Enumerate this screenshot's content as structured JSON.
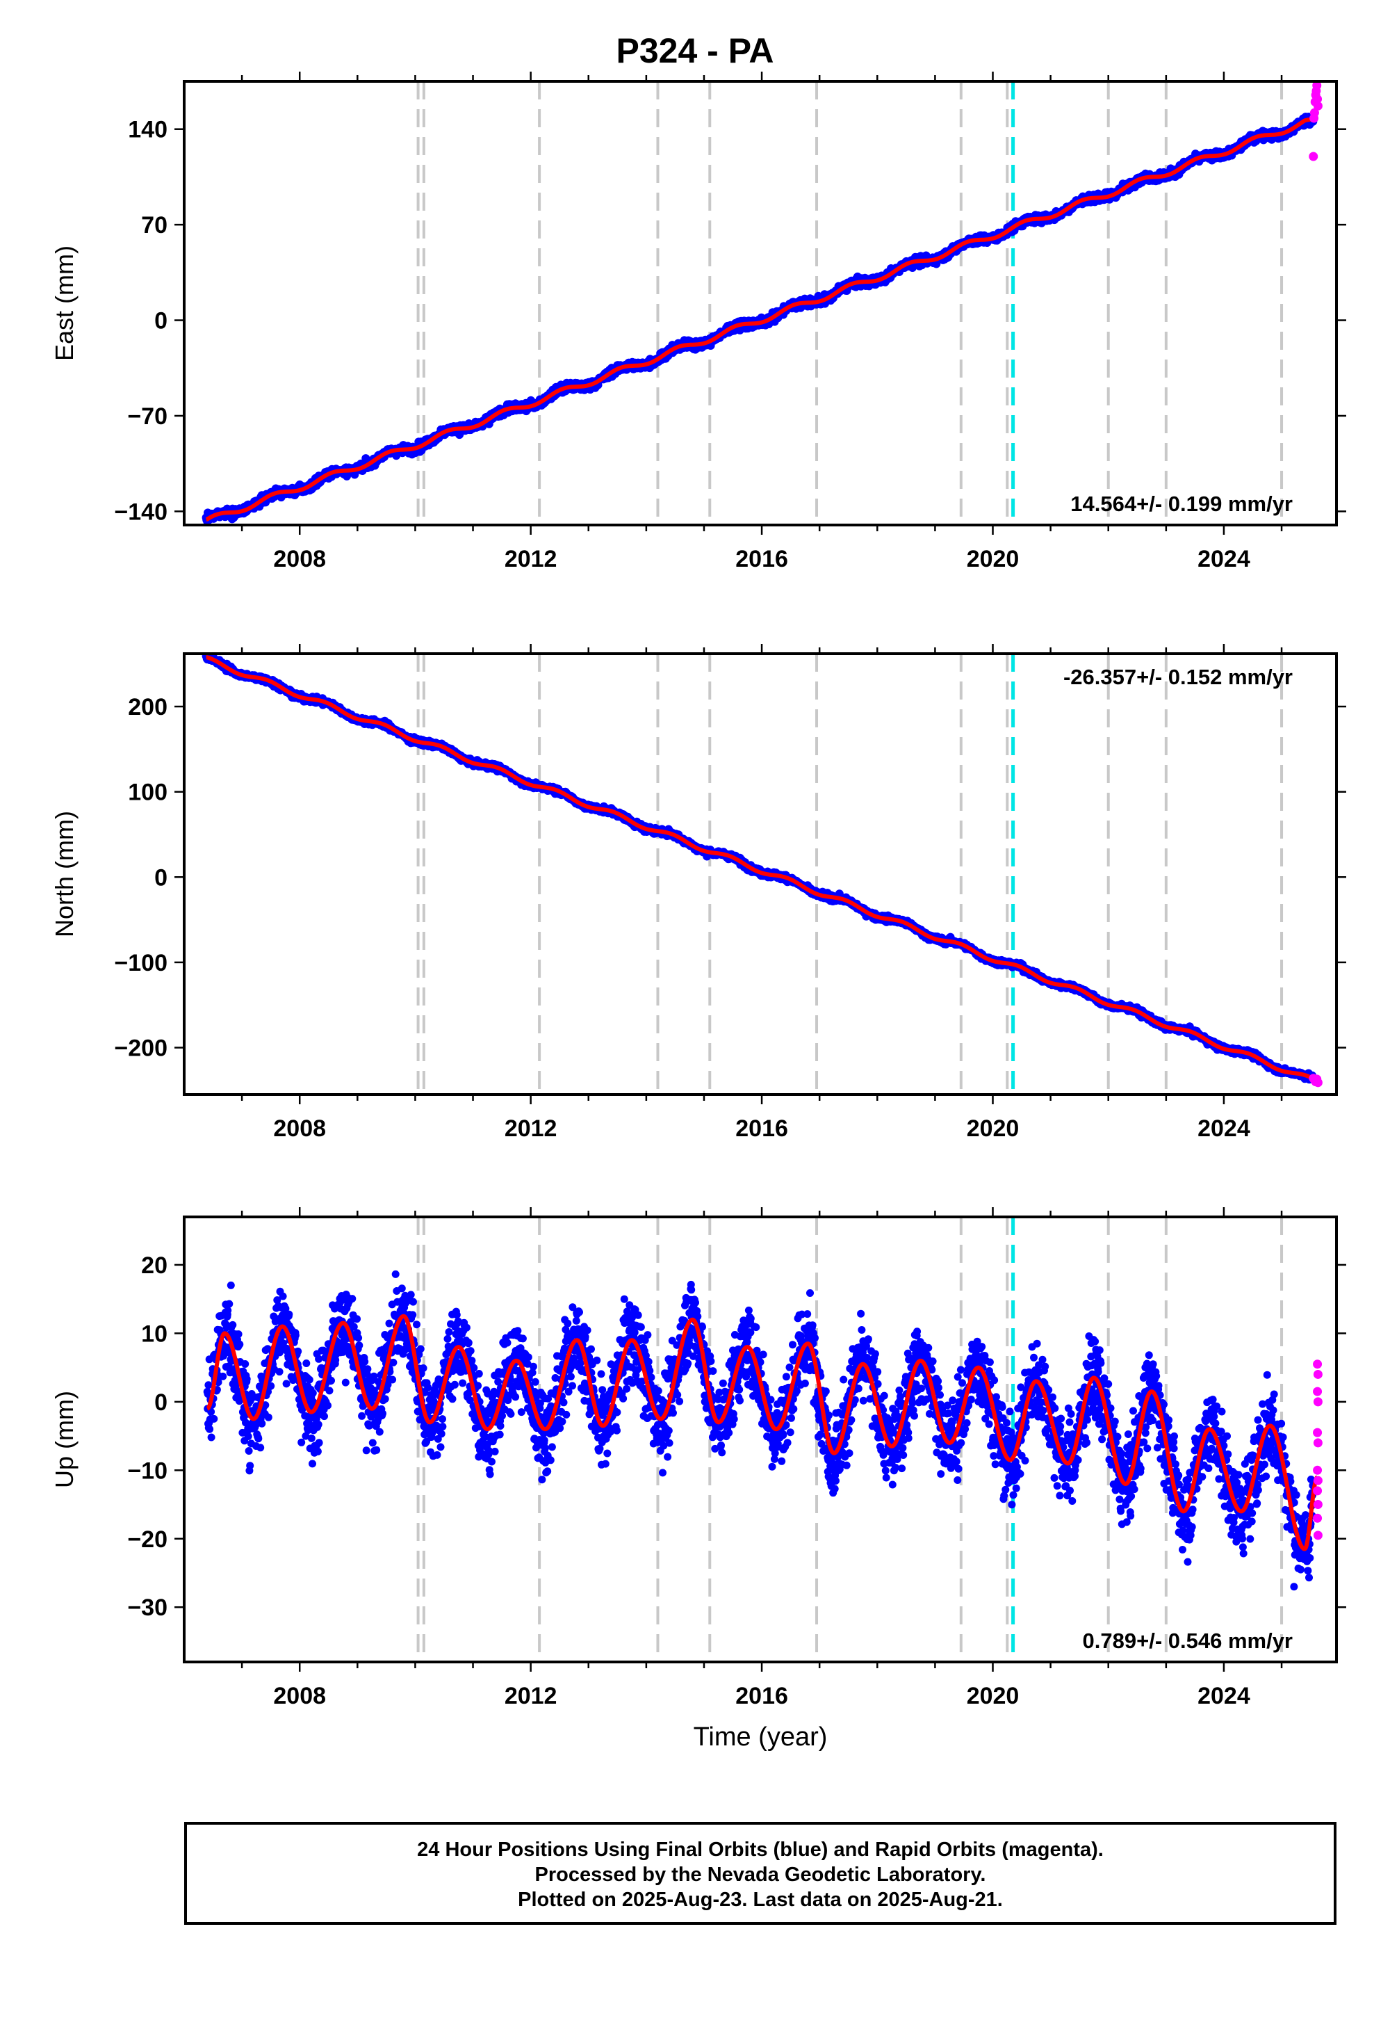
{
  "title": "P324 - PA",
  "xlabel": "Time (year)",
  "colors": {
    "final": "#0000ff",
    "rapid": "#ff00ff",
    "model": "#ff0000",
    "event_gray": "#c8c8c8",
    "event_cyan": "#00e5e5"
  },
  "chart_data": [
    {
      "type": "scatter",
      "name": "east",
      "ylabel": "East (mm)",
      "xlim": [
        2006.0,
        2025.95
      ],
      "ylim": [
        -150,
        175
      ],
      "yticks": [
        -140,
        -70,
        0,
        70,
        140
      ],
      "xticks": [
        2008,
        2012,
        2016,
        2020,
        2024
      ],
      "rate_label": "14.564+/- 0.199 mm/yr",
      "rate_position": "bottom-right",
      "trend": {
        "x": [
          2006.4,
          2025.4
        ],
        "y": [
          -147,
          145
        ]
      },
      "rapid_points": {
        "x": [
          2025.55,
          2025.56,
          2025.57,
          2025.58,
          2025.59,
          2025.6,
          2025.61,
          2025.62,
          2025.63
        ],
        "y": [
          120,
          148,
          152,
          160,
          165,
          168,
          172,
          162,
          157
        ]
      }
    },
    {
      "type": "scatter",
      "name": "north",
      "ylabel": "North (mm)",
      "xlim": [
        2006.0,
        2025.95
      ],
      "ylim": [
        -255,
        262
      ],
      "yticks": [
        -200,
        -100,
        0,
        100,
        200
      ],
      "xticks": [
        2008,
        2012,
        2016,
        2020,
        2024
      ],
      "rate_label": "-26.357+/- 0.152 mm/yr",
      "rate_position": "top-right",
      "trend": {
        "x": [
          2006.4,
          2025.6
        ],
        "y": [
          255,
          -240
        ]
      },
      "rapid_points": {
        "x": [
          2025.55,
          2025.57,
          2025.59,
          2025.61,
          2025.63
        ],
        "y": [
          -236,
          -238,
          -240,
          -237,
          -241
        ]
      }
    },
    {
      "type": "scatter",
      "name": "up",
      "ylabel": "Up (mm)",
      "xlim": [
        2006.0,
        2025.95
      ],
      "ylim": [
        -38,
        27
      ],
      "yticks": [
        -30,
        -20,
        -10,
        0,
        10,
        20
      ],
      "xticks": [
        2008,
        2012,
        2016,
        2020,
        2024
      ],
      "rate_label": "0.789+/- 0.546 mm/yr",
      "rate_position": "bottom-right",
      "seasonal_peaks": {
        "x": [
          2006.7,
          2007.7,
          2008.75,
          2009.8,
          2010.75,
          2011.75,
          2012.8,
          2013.75,
          2014.8,
          2015.75,
          2016.8,
          2017.75,
          2018.75,
          2019.75,
          2020.75,
          2021.75,
          2022.75,
          2023.75,
          2024.8
        ],
        "y": [
          10,
          11,
          11.5,
          12.5,
          8,
          6,
          9,
          9,
          12,
          8,
          8.5,
          5.5,
          6,
          5,
          3,
          3.5,
          1.5,
          -4,
          -3.5
        ]
      },
      "seasonal_troughs": {
        "x": [
          2006.4,
          2007.2,
          2008.2,
          2009.25,
          2010.25,
          2011.25,
          2012.25,
          2013.25,
          2014.25,
          2015.25,
          2016.25,
          2017.25,
          2018.25,
          2019.25,
          2020.3,
          2021.3,
          2022.3,
          2023.3,
          2024.3,
          2025.4
        ],
        "y": [
          -1,
          -2.5,
          -1.5,
          -1,
          -3,
          -4,
          -4,
          -3.5,
          -2.5,
          -3,
          -4,
          -7.5,
          -6.5,
          -6,
          -8.5,
          -9,
          -12,
          -16,
          -16,
          -21.5
        ]
      },
      "end_point": {
        "x": 2025.62,
        "y": -11
      },
      "rapid_points": {
        "x": [
          2025.62,
          2025.63,
          2025.62,
          2025.63,
          2025.62,
          2025.63,
          2025.62,
          2025.63,
          2025.62,
          2025.63,
          2025.62,
          2025.63
        ],
        "y": [
          5.5,
          4,
          1.5,
          0,
          -4.5,
          -6,
          -10,
          -11.5,
          -13,
          -15,
          -17,
          -19.5
        ]
      }
    }
  ],
  "event_lines": {
    "gray": [
      2010.05,
      2010.15,
      2012.15,
      2014.2,
      2015.1,
      2016.95,
      2019.45,
      2020.25,
      2022.0,
      2023.0,
      2025.0
    ],
    "cyan": [
      2020.35
    ]
  },
  "footer": {
    "line1": "24 Hour Positions Using Final Orbits (blue) and Rapid Orbits (magenta).",
    "line2": "Processed by the Nevada Geodetic Laboratory.",
    "line3": "Plotted on 2025-Aug-23. Last data on 2025-Aug-21."
  }
}
